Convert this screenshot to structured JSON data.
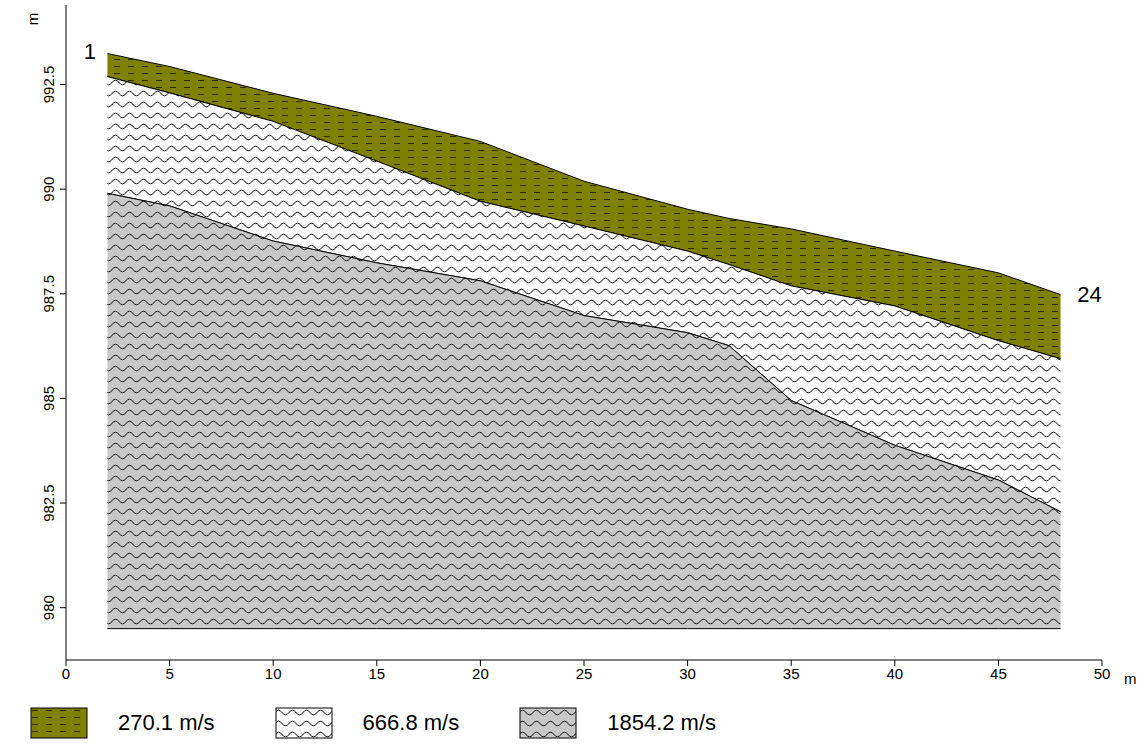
{
  "chart_data": {
    "type": "area",
    "x_label": "m",
    "y_label": "m",
    "x": [
      2,
      5,
      10,
      15,
      20,
      25,
      30,
      32,
      35,
      40,
      45,
      48
    ],
    "series": [
      {
        "name": "270.1 m/s",
        "color": "#808000",
        "values": [
          993.24,
          992.93,
          992.29,
          991.74,
          991.14,
          990.19,
          989.52,
          989.3,
          989.05,
          988.52,
          988.0,
          987.48
        ]
      },
      {
        "name": "666.8 m/s",
        "color": "#ffffff",
        "values": [
          992.69,
          992.3,
          991.62,
          990.67,
          989.71,
          989.12,
          988.52,
          988.2,
          987.69,
          987.21,
          986.38,
          985.95
        ]
      },
      {
        "name": "1854.2 m/s",
        "color": "#c8c8c8",
        "values": [
          989.9,
          989.6,
          988.76,
          988.24,
          987.81,
          986.98,
          986.57,
          986.26,
          984.95,
          983.88,
          983.05,
          982.29
        ]
      }
    ],
    "base": 979.5,
    "annotations": [
      {
        "text": "1",
        "x": 1.15,
        "y": 993.3
      },
      {
        "text": "24",
        "x": 49.4,
        "y": 987.5
      }
    ],
    "xlim": [
      0,
      50
    ],
    "xticks": [
      0,
      5,
      10,
      15,
      20,
      25,
      30,
      35,
      40,
      45,
      50
    ],
    "ylim": [
      978.75,
      994.4
    ],
    "yticks": [
      980,
      982.5,
      985,
      987.5,
      990,
      992.5
    ],
    "grid": false
  }
}
